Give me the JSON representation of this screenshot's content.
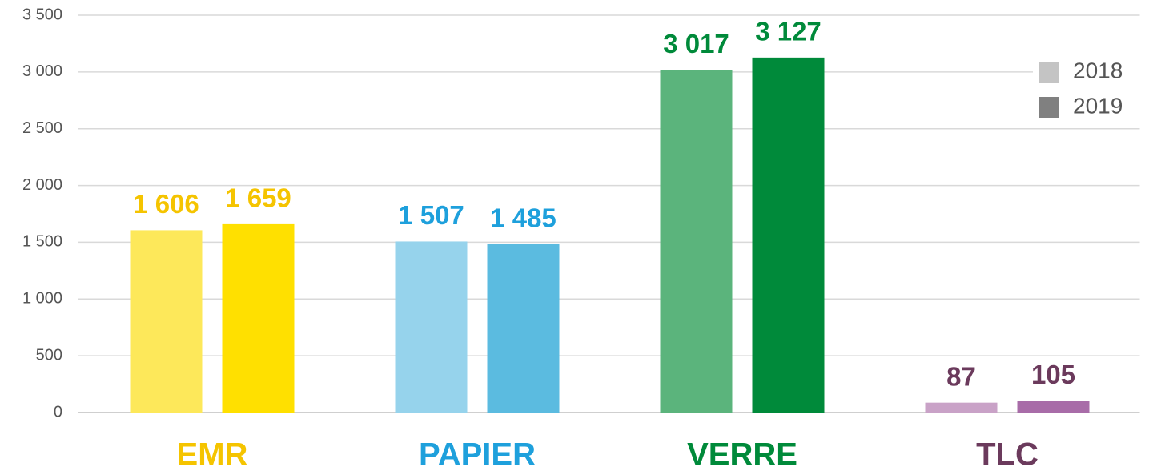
{
  "chart_data": {
    "type": "bar",
    "categories": [
      "EMR",
      "PAPIER",
      "VERRE",
      "TLC"
    ],
    "category_colors": [
      "#f5c400",
      "#1ea0dc",
      "#008a3a",
      "#6b3a5c"
    ],
    "series": [
      {
        "name": "2018",
        "color": "#c4c4c4",
        "bar_colors": [
          "#fde85a",
          "#96d3ec",
          "#5bb47c",
          "#c9a2c7"
        ],
        "values": [
          1606,
          1507,
          3017,
          87
        ],
        "value_labels": [
          "1 606",
          "1 507",
          "3 017",
          "87"
        ]
      },
      {
        "name": "2019",
        "color": "#808080",
        "bar_colors": [
          "#ffe000",
          "#5bbbe0",
          "#008a3a",
          "#a86ca8"
        ],
        "values": [
          1659,
          1485,
          3127,
          105
        ],
        "value_labels": [
          "1 659",
          "1 485",
          "3 127",
          "105"
        ]
      }
    ],
    "ylim": [
      0,
      3500
    ],
    "yticks": [
      0,
      500,
      {
        "value": 1000,
        "label": "1 000"
      },
      {
        "value": 1500,
        "label": "1 500"
      },
      {
        "value": 2000,
        "label": "2 000"
      },
      {
        "value": 2500,
        "label": "2 500"
      },
      {
        "value": 3000,
        "label": "3 000"
      },
      {
        "value": 3500,
        "label": "3 500"
      }
    ],
    "grid": true,
    "legend": "top-right"
  }
}
